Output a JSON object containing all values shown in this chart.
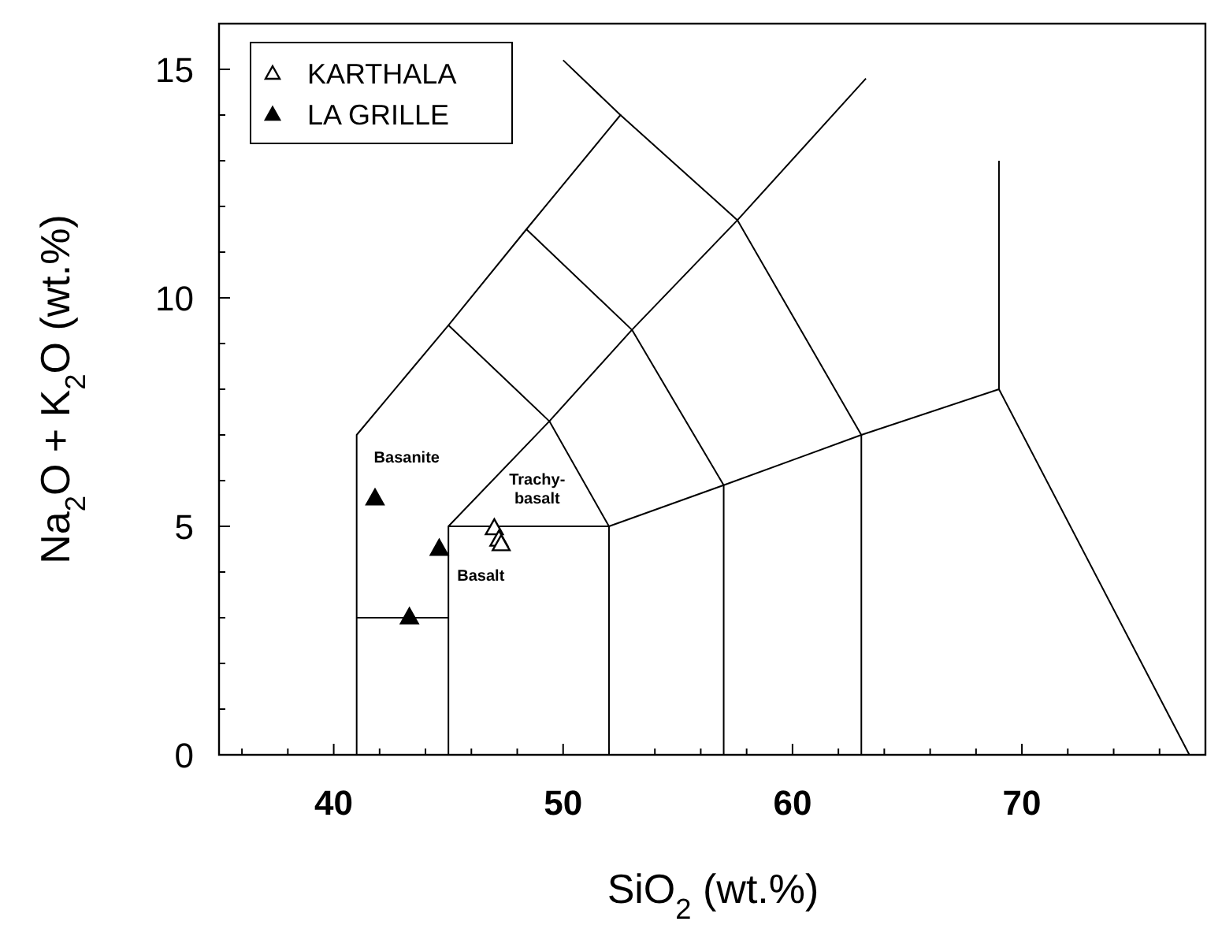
{
  "chart_data": {
    "type": "scatter",
    "xlabel": "SiO$_{2}$ (wt.%)",
    "ylabel": "Na$_{2}$O + K$_{2}$O (wt.%)",
    "xlim": [
      35,
      78
    ],
    "ylim": [
      0,
      16
    ],
    "xticks": [
      {
        "value": 36,
        "label": null
      },
      {
        "value": 38,
        "label": null
      },
      40,
      {
        "value": 42,
        "label": null
      },
      {
        "value": 44,
        "label": null
      },
      {
        "value": 46,
        "label": null
      },
      {
        "value": 48,
        "label": null
      },
      50,
      {
        "value": 52,
        "label": null
      },
      {
        "value": 54,
        "label": null
      },
      {
        "value": 56,
        "label": null
      },
      {
        "value": 58,
        "label": null
      },
      60,
      {
        "value": 62,
        "label": null
      },
      {
        "value": 64,
        "label": null
      },
      {
        "value": 66,
        "label": null
      },
      {
        "value": 68,
        "label": null
      },
      70,
      {
        "value": 72,
        "label": null
      },
      {
        "value": 74,
        "label": null
      },
      {
        "value": 76,
        "label": null
      }
    ],
    "yticks": [
      0,
      {
        "value": 1,
        "label": null
      },
      {
        "value": 2,
        "label": null
      },
      {
        "value": 3,
        "label": null
      },
      {
        "value": 4,
        "label": null
      },
      5,
      {
        "value": 6,
        "label": null
      },
      {
        "value": 7,
        "label": null
      },
      {
        "value": 8,
        "label": null
      },
      {
        "value": 9,
        "label": null
      },
      10,
      {
        "value": 11,
        "label": null
      },
      {
        "value": 12,
        "label": null
      },
      {
        "value": 13,
        "label": null
      },
      {
        "value": 14,
        "label": null
      },
      15
    ],
    "grid": false,
    "legend": "top left",
    "series": [
      {
        "name": "KARTHALA",
        "color": "#ffffff",
        "marker": "triangle",
        "x": [
          47.0,
          47.2,
          47.3
        ],
        "values": [
          4.95,
          4.7,
          4.6
        ]
      },
      {
        "name": "LA GRILLE",
        "color": "#000000",
        "marker": "triangle",
        "x": [
          41.8,
          44.6,
          43.3
        ],
        "values": [
          5.6,
          4.5,
          3.0
        ]
      },
      {
        "type": "line",
        "marker": "none",
        "color": "#000000",
        "x": [
          41,
          41,
          45,
          48.4,
          52.5,
          50
        ],
        "values": [
          0,
          7,
          9.4,
          11.5,
          14,
          15.2
        ]
      },
      {
        "type": "line",
        "marker": "none",
        "color": "#000000",
        "x": [
          52.5,
          57.6,
          63,
          63
        ],
        "values": [
          14,
          11.7,
          7,
          0
        ]
      },
      {
        "type": "line",
        "marker": "none",
        "color": "#000000",
        "x": [
          45,
          45,
          49.4,
          53,
          57.6,
          63.2
        ],
        "values": [
          0,
          5,
          7.3,
          9.3,
          11.7,
          14.8
        ]
      },
      {
        "type": "line",
        "marker": "none",
        "color": "#000000",
        "x": [
          41,
          45
        ],
        "values": [
          3,
          3
        ]
      },
      {
        "type": "line",
        "marker": "none",
        "color": "#000000",
        "x": [
          45,
          52,
          57,
          63,
          69,
          77.3
        ],
        "values": [
          5,
          5,
          5.9,
          7,
          8,
          0
        ]
      },
      {
        "type": "line",
        "marker": "none",
        "color": "#000000",
        "x": [
          69,
          69
        ],
        "values": [
          8,
          13
        ]
      },
      {
        "type": "line",
        "marker": "none",
        "color": "#000000",
        "x": [
          52,
          52
        ],
        "values": [
          0,
          5
        ]
      },
      {
        "type": "line",
        "marker": "none",
        "color": "#000000",
        "x": [
          57,
          57
        ],
        "values": [
          0,
          5.9
        ]
      },
      {
        "type": "line",
        "marker": "none",
        "color": "#000000",
        "x": [
          45,
          49.4,
          52,
          52
        ],
        "values": [
          9.4,
          7.3,
          5,
          5
        ]
      },
      {
        "type": "line",
        "marker": "none",
        "color": "#000000",
        "x": [
          48.4,
          53,
          57
        ],
        "values": [
          11.5,
          9.3,
          5.9
        ]
      }
    ],
    "annotations": [
      "Basanite",
      "Trachy-\nbasalt",
      "Basalt"
    ]
  }
}
